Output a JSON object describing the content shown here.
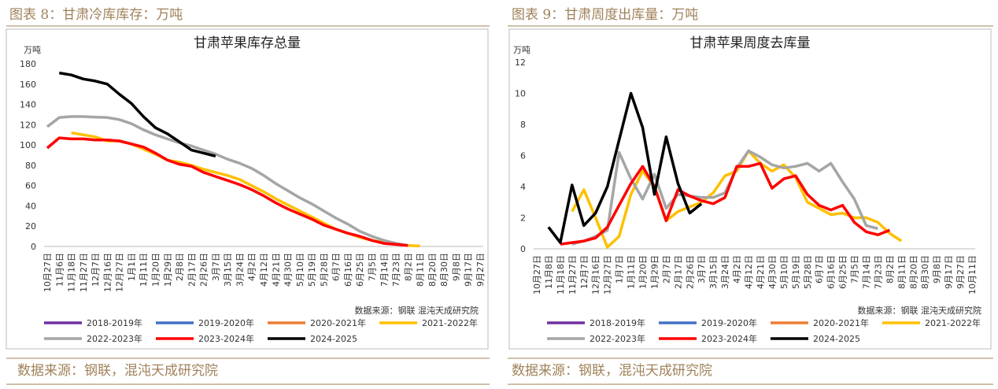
{
  "figures": [
    {
      "caption": "图表 8：甘肃冷库库存：万吨",
      "source": "数据来源：钢联，混沌天成研究院"
    },
    {
      "caption": "图表 9：甘肃周度出库量：万吨",
      "source": "数据来源：钢联，混沌天成研究院"
    }
  ],
  "chart_data": [
    {
      "type": "line",
      "title": "甘肃苹果库存总量",
      "y_unit": "万吨",
      "note": "数据来源：钢联  混沌天成研究院",
      "categories": [
        "10月27日",
        "11月6日",
        "11月18日",
        "11月27日",
        "12月7日",
        "12月16日",
        "12月27日",
        "1月1日",
        "1月11日",
        "1月20日",
        "1月29日",
        "2月8日",
        "2月17日",
        "2月26日",
        "3月7日",
        "3月15日",
        "3月24日",
        "4月2日",
        "4月12日",
        "4月21日",
        "4月30日",
        "5月10日",
        "5月19日",
        "5月28日",
        "6月7日",
        "6月16日",
        "6月25日",
        "7月5日",
        "7月14日",
        "7月23日",
        "8月2日",
        "8月11日",
        "8月20日",
        "8月30日",
        "9月8日",
        "9月17日",
        "9月27日"
      ],
      "ylim": [
        0,
        180
      ],
      "yticks": [
        0,
        20,
        40,
        60,
        80,
        100,
        120,
        140,
        160,
        180
      ],
      "grid": false,
      "series": [
        {
          "name": "2018-2019年",
          "color": "#7030a0",
          "values": [
            null,
            null,
            null,
            null,
            null,
            null,
            null,
            null,
            null,
            null,
            null,
            null,
            null,
            null,
            null,
            null,
            null,
            null,
            null,
            null,
            null,
            null,
            null,
            null,
            null,
            null,
            null,
            null,
            null,
            null,
            null,
            null,
            null,
            null,
            null,
            null,
            null
          ]
        },
        {
          "name": "2019-2020年",
          "color": "#4472c4",
          "values": [
            null,
            null,
            null,
            null,
            null,
            null,
            null,
            null,
            null,
            null,
            null,
            null,
            null,
            null,
            null,
            null,
            null,
            null,
            null,
            null,
            null,
            null,
            null,
            null,
            null,
            null,
            null,
            null,
            null,
            null,
            null,
            null,
            null,
            null,
            null,
            null,
            null
          ]
        },
        {
          "name": "2020-2021年",
          "color": "#ed7d31",
          "values": [
            null,
            null,
            null,
            null,
            null,
            null,
            null,
            null,
            null,
            null,
            null,
            null,
            null,
            null,
            null,
            null,
            null,
            null,
            null,
            null,
            null,
            null,
            null,
            null,
            null,
            null,
            null,
            null,
            null,
            null,
            null,
            null,
            null,
            null,
            null,
            null,
            null
          ]
        },
        {
          "name": "2021-2022年",
          "color": "#ffc000",
          "values": [
            null,
            null,
            112,
            110,
            108,
            104,
            104,
            101,
            96,
            91,
            85,
            83,
            80,
            76,
            73,
            70,
            66,
            60,
            54,
            47,
            41,
            35,
            29,
            23,
            17,
            13,
            9,
            6,
            4,
            2,
            1,
            0.5,
            null,
            null,
            null,
            null,
            null
          ]
        },
        {
          "name": "2022-2023年",
          "color": "#a5a5a5",
          "values": [
            118,
            127,
            128,
            128,
            127.5,
            127,
            125,
            121,
            115,
            110,
            106,
            102,
            99,
            95,
            91,
            86,
            82,
            77,
            70,
            62,
            55,
            48,
            42,
            35,
            28,
            22,
            15,
            10,
            6,
            3,
            1,
            null,
            null,
            null,
            null,
            null,
            null
          ]
        },
        {
          "name": "2023-2024年",
          "color": "#ff0000",
          "values": [
            97,
            107,
            106,
            106,
            105,
            105,
            104,
            101,
            98,
            92,
            85,
            81,
            79,
            73,
            69,
            65,
            61,
            56,
            50,
            43,
            37,
            32,
            27,
            21,
            17,
            13,
            10,
            6,
            3,
            2,
            1,
            null,
            null,
            null,
            null,
            null,
            null
          ]
        },
        {
          "name": "2024-2025",
          "color": "#000000",
          "values": [
            null,
            171,
            169,
            165,
            163,
            160,
            150,
            141,
            128,
            117,
            111,
            103,
            95,
            92,
            89,
            null,
            null,
            null,
            null,
            null,
            null,
            null,
            null,
            null,
            null,
            null,
            null,
            null,
            null,
            null,
            null,
            null,
            null,
            null,
            null,
            null,
            null
          ]
        }
      ]
    },
    {
      "type": "line",
      "title": "甘肃苹果周度去库量",
      "y_unit": "万吨",
      "note": "数据来源：钢联  混沌天成研究院",
      "categories": [
        "10月27日",
        "11月8日",
        "11月18日",
        "11月27日",
        "12月7日",
        "12月16日",
        "12月27日",
        "1月7日",
        "1月11日",
        "1月20日",
        "1月29日",
        "2月7日",
        "2月17日",
        "2月26日",
        "3月7日",
        "3月15日",
        "3月24日",
        "4月2日",
        "4月12日",
        "4月21日",
        "4月30日",
        "5月10日",
        "5月19日",
        "5月28日",
        "6月7日",
        "6月16日",
        "6月25日",
        "7月5日",
        "7月14日",
        "7月23日",
        "8月2日",
        "8月11日",
        "8月20日",
        "8月30日",
        "9月8日",
        "9月17日",
        "9月27日",
        "10月11日"
      ],
      "ylim": [
        0,
        12
      ],
      "yticks": [
        0,
        2,
        4,
        6,
        8,
        10,
        12
      ],
      "grid": false,
      "series": [
        {
          "name": "2018-2019年",
          "color": "#7030a0",
          "values": [
            null,
            null,
            null,
            null,
            null,
            null,
            null,
            null,
            null,
            null,
            null,
            null,
            null,
            null,
            null,
            null,
            null,
            null,
            null,
            null,
            null,
            null,
            null,
            null,
            null,
            null,
            null,
            null,
            null,
            null,
            null,
            null,
            null,
            null,
            null,
            null,
            null,
            null
          ]
        },
        {
          "name": "2019-2020年",
          "color": "#4472c4",
          "values": [
            null,
            null,
            null,
            null,
            null,
            null,
            null,
            null,
            null,
            null,
            null,
            null,
            null,
            null,
            null,
            null,
            null,
            null,
            null,
            null,
            null,
            null,
            null,
            null,
            null,
            null,
            null,
            null,
            null,
            null,
            null,
            null,
            null,
            null,
            null,
            null,
            null,
            null
          ]
        },
        {
          "name": "2020-2021年",
          "color": "#ed7d31",
          "values": [
            null,
            null,
            null,
            null,
            null,
            null,
            null,
            null,
            null,
            null,
            null,
            null,
            null,
            null,
            null,
            null,
            null,
            null,
            null,
            null,
            null,
            null,
            null,
            null,
            null,
            null,
            null,
            null,
            null,
            null,
            null,
            null,
            null,
            null,
            null,
            null,
            null,
            null
          ]
        },
        {
          "name": "2021-2022年",
          "color": "#ffc000",
          "values": [
            null,
            null,
            null,
            2.4,
            3.8,
            2.0,
            0.1,
            0.8,
            3.5,
            5.0,
            4.0,
            1.8,
            2.4,
            2.7,
            3.0,
            3.6,
            4.7,
            5.0,
            6.3,
            5.5,
            5.0,
            5.4,
            4.6,
            3.0,
            2.6,
            2.2,
            2.3,
            2.0,
            2.0,
            1.7,
            1.0,
            0.5,
            null,
            null,
            null,
            null,
            null,
            null
          ]
        },
        {
          "name": "2022-2023年",
          "color": "#a5a5a5",
          "values": [
            null,
            null,
            null,
            0.3,
            0.5,
            0.8,
            1.2,
            6.2,
            4.5,
            3.2,
            4.8,
            2.6,
            3.5,
            3.4,
            3.3,
            3.3,
            3.6,
            5.2,
            6.3,
            5.9,
            5.4,
            5.2,
            5.3,
            5.5,
            5.0,
            5.5,
            4.3,
            3.2,
            1.5,
            1.3,
            null,
            null,
            null,
            null,
            null,
            null,
            null,
            null
          ]
        },
        {
          "name": "2023-2024年",
          "color": "#ff0000",
          "values": [
            null,
            null,
            0.3,
            0.4,
            0.5,
            0.7,
            1.4,
            2.8,
            4.2,
            5.3,
            4.0,
            1.8,
            3.8,
            3.4,
            3.1,
            2.9,
            3.3,
            5.3,
            5.3,
            5.5,
            3.9,
            4.5,
            4.7,
            3.5,
            2.8,
            2.5,
            2.8,
            1.7,
            1.1,
            0.9,
            1.2,
            null,
            null,
            null,
            null,
            null,
            null,
            null
          ]
        },
        {
          "name": "2024-2025",
          "color": "#000000",
          "values": [
            null,
            1.4,
            0.4,
            4.1,
            1.5,
            2.3,
            4.0,
            7.0,
            10,
            7.8,
            3.5,
            7.2,
            4.2,
            2.3,
            2.9,
            null,
            null,
            null,
            null,
            null,
            null,
            null,
            null,
            null,
            null,
            null,
            null,
            null,
            null,
            null,
            null,
            null,
            null,
            null,
            null,
            null,
            null,
            null
          ]
        }
      ]
    }
  ]
}
